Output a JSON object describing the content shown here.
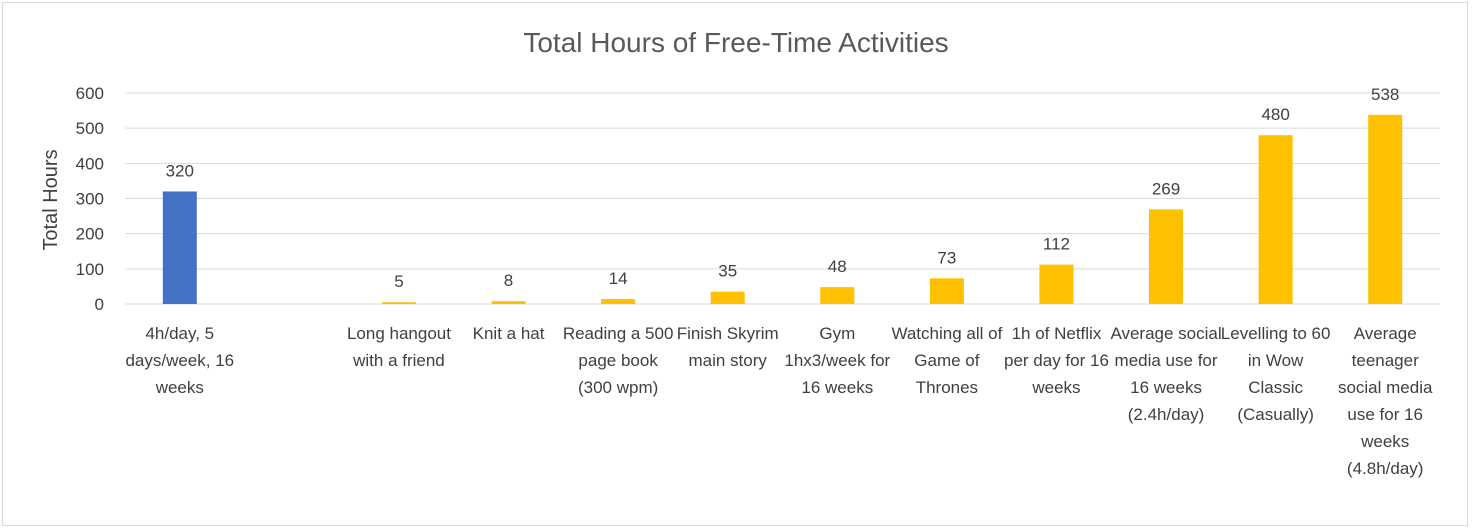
{
  "chart_data": {
    "type": "bar",
    "title": "Total Hours of Free-Time Activities",
    "xlabel": "",
    "ylabel": "Total Hours",
    "ylim": [
      0,
      600
    ],
    "yticks": [
      0,
      100,
      200,
      300,
      400,
      500,
      600
    ],
    "grid": true,
    "legend": "none",
    "colors": {
      "highlight": "#4472C4",
      "default": "#FFC000",
      "grid": "#d9d9d9"
    },
    "categories": [
      "4h/day, 5 days/week, 16 weeks",
      "",
      "Long hangout with a friend",
      "Knit a hat",
      "Reading a 500 page book (300 wpm)",
      "Finish Skyrim main story",
      "Gym 1hx3/week for 16 weeks",
      "Watching all of Game of Thrones",
      "1h of Netflix per day for 16 weeks",
      "Average social media use for 16 weeks (2.4h/day)",
      "Levelling to 60 in Wow Classic (Casually)",
      "Average teenager social media use for 16 weeks (4.8h/day)"
    ],
    "values": [
      320,
      null,
      5,
      8,
      14,
      35,
      48,
      73,
      112,
      269,
      480,
      538
    ],
    "bar_colors": [
      "#4472C4",
      "",
      "#FFC000",
      "#FFC000",
      "#FFC000",
      "#FFC000",
      "#FFC000",
      "#FFC000",
      "#FFC000",
      "#FFC000",
      "#FFC000",
      "#FFC000"
    ]
  }
}
